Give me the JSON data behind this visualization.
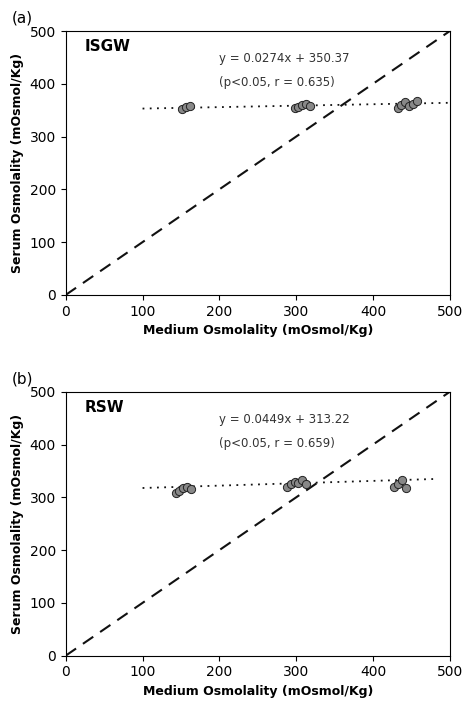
{
  "panel_a": {
    "label": "(a)",
    "title": "ISGW",
    "equation": "y = 0.0274x + 350.37",
    "stats": "(p<0.05, r = 0.635)",
    "slope": 0.0274,
    "intercept": 350.37,
    "data_x": [
      152,
      157,
      162,
      298,
      303,
      308,
      313,
      318,
      432,
      437,
      442,
      447,
      452,
      457
    ],
    "data_y": [
      352,
      356,
      358,
      354,
      357,
      360,
      362,
      358,
      355,
      360,
      365,
      358,
      362,
      367
    ],
    "xlabel": "Medium Osmolality (mOsmol/Kg)",
    "ylabel": "Serum Osmolality (mOsmol/Kg)",
    "xlim": [
      0,
      500
    ],
    "ylim": [
      0,
      500
    ],
    "xticks": [
      0,
      100,
      200,
      300,
      400,
      500
    ],
    "yticks": [
      0,
      100,
      200,
      300,
      400,
      500
    ],
    "reg_x_start": 100,
    "reg_x_end": 500
  },
  "panel_b": {
    "label": "(b)",
    "title": "RSW",
    "equation": "y = 0.0449x + 313.22",
    "stats": "(p<0.05, r = 0.659)",
    "slope": 0.0449,
    "intercept": 313.22,
    "data_x": [
      143,
      148,
      153,
      158,
      163,
      288,
      293,
      298,
      303,
      308,
      313,
      428,
      433,
      438,
      443
    ],
    "data_y": [
      308,
      312,
      318,
      320,
      316,
      320,
      325,
      330,
      328,
      333,
      325,
      320,
      326,
      332,
      318
    ],
    "xlabel": "Medium Osmolality (mOsmol/Kg)",
    "ylabel": "Serum Osmolality (mOsmol/Kg)",
    "xlim": [
      0,
      500
    ],
    "ylim": [
      0,
      500
    ],
    "xticks": [
      0,
      100,
      200,
      300,
      400,
      500
    ],
    "yticks": [
      0,
      100,
      200,
      300,
      400,
      500
    ],
    "reg_x_start": 100,
    "reg_x_end": 480
  },
  "dot_color": "#888888",
  "dot_edge_color": "#222222",
  "dot_size": 35,
  "regression_color": "#111111",
  "identity_color": "#111111",
  "regression_lw": 1.3,
  "identity_lw": 1.5,
  "eq_color": "#333333",
  "title_fontsize": 11,
  "label_fontsize": 9,
  "eq_fontsize": 8.5
}
